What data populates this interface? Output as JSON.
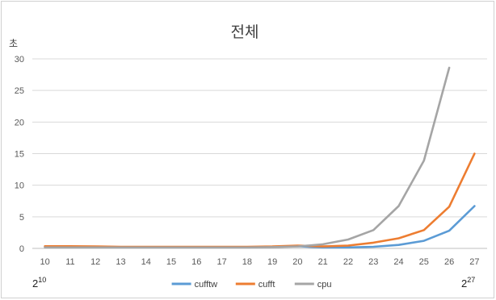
{
  "chart_data": {
    "type": "line",
    "title": "전체",
    "ylabel": "초",
    "xlabel": "",
    "categories": [
      "10",
      "11",
      "12",
      "13",
      "14",
      "15",
      "16",
      "17",
      "18",
      "19",
      "20",
      "21",
      "22",
      "23",
      "24",
      "25",
      "26",
      "27"
    ],
    "ylim": [
      0,
      30
    ],
    "yticks": [
      0,
      5,
      10,
      15,
      20,
      25,
      30
    ],
    "grid": "horizontal",
    "legend": "bottom",
    "corner_left": {
      "base": "2",
      "exp": "10"
    },
    "corner_right": {
      "base": "2",
      "exp": "27"
    },
    "series": [
      {
        "name": "cufftw",
        "color": "#5B9BD5",
        "values": [
          0.25,
          0.25,
          0.25,
          0.2,
          0.2,
          0.2,
          0.2,
          0.2,
          0.2,
          0.25,
          0.35,
          0.15,
          0.15,
          0.25,
          0.55,
          1.2,
          2.8,
          6.7
        ]
      },
      {
        "name": "cufft",
        "color": "#ED7D31",
        "values": [
          0.35,
          0.35,
          0.3,
          0.25,
          0.25,
          0.25,
          0.25,
          0.25,
          0.25,
          0.3,
          0.45,
          0.3,
          0.45,
          0.9,
          1.6,
          2.9,
          6.6,
          15.0
        ]
      },
      {
        "name": "cpu",
        "color": "#A5A5A5",
        "values": [
          0.15,
          0.15,
          0.15,
          0.15,
          0.15,
          0.15,
          0.15,
          0.15,
          0.15,
          0.2,
          0.3,
          0.65,
          1.4,
          2.9,
          6.7,
          13.9,
          28.6,
          null
        ]
      }
    ]
  }
}
